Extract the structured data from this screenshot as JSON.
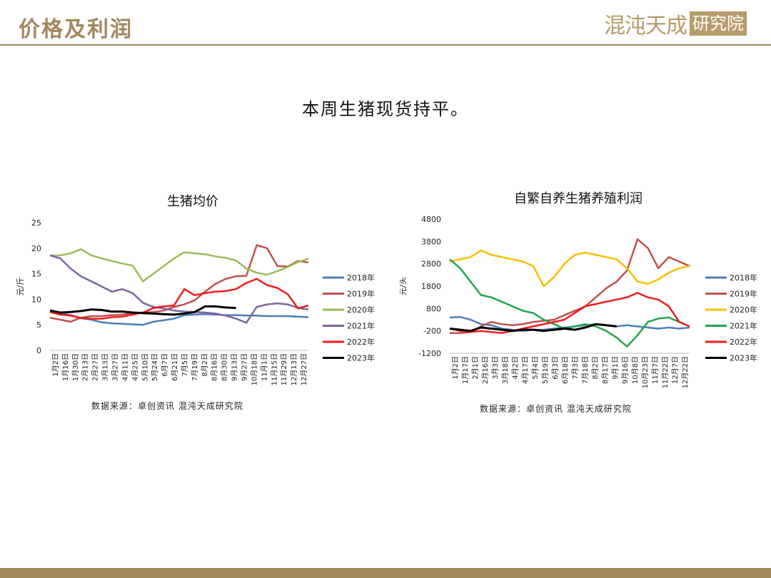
{
  "header": {
    "title": "价格及利润",
    "logo_main": "混沌天成",
    "logo_box": "研究院"
  },
  "subtitle": "本周生猪现货持平。",
  "colors": {
    "brand": "#a2875d",
    "2018": "#4a7ebb",
    "2019": "#c0504d",
    "2020_left": "#9bbb59",
    "2020_right": "#f7c000",
    "2021_left": "#8064a2",
    "2021_right": "#20a64b",
    "2022": "#ee1c1c",
    "2023": "#000000"
  },
  "chart_data": [
    {
      "type": "line",
      "title": "生猪均价",
      "ylabel": "元/斤",
      "ylim": [
        0,
        25
      ],
      "yticks": [
        0,
        5,
        10,
        15,
        20,
        25
      ],
      "x_tick_labels": [
        "1月2日",
        "1月16日",
        "1月30日",
        "2月13日",
        "2月27日",
        "3月13日",
        "3月27日",
        "4月11日",
        "4月25日",
        "5月10日",
        "5月24日",
        "6月7日",
        "6月21日",
        "7月5日",
        "7月19日",
        "8月2日",
        "8月16日",
        "8月30日",
        "9月13日",
        "9月27日",
        "10月18日",
        "11月1日",
        "11月15日",
        "11月29日",
        "12月13日",
        "12月27日"
      ],
      "source": "数据来源：卓创资讯 混沌天成研究院",
      "series": [
        {
          "name": "2018年",
          "color": "#4a7ebb",
          "values": [
            7.6,
            7.3,
            6.9,
            6.3,
            6.0,
            5.5,
            5.3,
            5.2,
            5.1,
            5.0,
            5.6,
            5.9,
            6.2,
            6.9,
            7.0,
            7.1,
            7.0,
            6.9,
            6.9,
            6.8,
            6.8,
            6.7,
            6.7,
            6.7,
            6.6,
            6.5
          ]
        },
        {
          "name": "2019年",
          "color": "#c0504d",
          "values": [
            6.4,
            6.0,
            5.6,
            6.4,
            6.7,
            6.7,
            6.9,
            7.0,
            7.3,
            7.4,
            7.5,
            7.8,
            8.5,
            9.0,
            9.8,
            11.5,
            13.0,
            14.0,
            14.5,
            14.6,
            20.6,
            20.0,
            16.5,
            16.4,
            17.5,
            17.2
          ]
        },
        {
          "name": "2020年",
          "color": "#9bbb59",
          "values": [
            18.5,
            18.6,
            19.0,
            19.8,
            18.6,
            18.0,
            17.5,
            17.0,
            16.6,
            13.5,
            15.0,
            16.5,
            18.0,
            19.2,
            19.0,
            18.8,
            18.4,
            18.1,
            17.6,
            16.0,
            15.2,
            14.8,
            15.5,
            16.3,
            17.3,
            17.9
          ]
        },
        {
          "name": "2021年",
          "color": "#8064a2",
          "values": [
            18.6,
            18.0,
            16.0,
            14.5,
            13.5,
            12.5,
            11.5,
            12.0,
            11.2,
            9.3,
            8.5,
            8.2,
            7.8,
            7.6,
            7.5,
            7.4,
            7.2,
            6.8,
            6.2,
            5.4,
            8.5,
            9.0,
            9.2,
            9.0,
            8.3,
            8.0
          ]
        },
        {
          "name": "2022年",
          "color": "#ee1c1c",
          "values": [
            7.5,
            7.0,
            6.8,
            6.3,
            6.2,
            6.2,
            6.5,
            6.6,
            7.0,
            7.4,
            8.3,
            8.6,
            8.8,
            12.0,
            10.8,
            11.2,
            11.5,
            11.6,
            12.0,
            13.2,
            14.0,
            12.8,
            12.2,
            11.0,
            8.2,
            8.8
          ]
        },
        {
          "name": "2023年",
          "color": "#000000",
          "values": [
            7.8,
            7.4,
            7.5,
            7.7,
            8.0,
            7.9,
            7.6,
            7.6,
            7.4,
            7.3,
            7.2,
            7.1,
            7.0,
            7.2,
            7.5,
            8.6,
            8.6,
            8.4,
            8.3,
            null,
            null,
            null,
            null,
            null,
            null,
            null
          ]
        }
      ]
    },
    {
      "type": "line",
      "title": "自繁自养生猪养殖利润",
      "ylabel": "元/头",
      "ylim": [
        -1200,
        4800
      ],
      "yticks": [
        -1200,
        -200,
        800,
        1800,
        2800,
        3800,
        4800
      ],
      "x_tick_labels": [
        "1月2日",
        "1月17日",
        "2月1日",
        "2月16日",
        "3月3日",
        "3月18日",
        "4月2日",
        "4月17日",
        "5月4日",
        "5月19日",
        "6月3日",
        "6月18日",
        "7月3日",
        "7月18日",
        "8月2日",
        "8月17日",
        "9月1日",
        "9月16日",
        "10月8日",
        "10月23日",
        "11月7日",
        "11月22日",
        "12月7日",
        "12月22日"
      ],
      "source": "数据来源：卓创资讯 混沌天成研究院",
      "series": [
        {
          "name": "2018年",
          "color": "#4a7ebb",
          "values": [
            400,
            420,
            300,
            100,
            50,
            -100,
            -150,
            -200,
            -150,
            -150,
            -100,
            -50,
            0,
            50,
            100,
            50,
            0,
            50,
            0,
            -50,
            -100,
            -50,
            -100,
            -50
          ]
        },
        {
          "name": "2019年",
          "color": "#c0504d",
          "values": [
            -300,
            -300,
            -250,
            0,
            200,
            100,
            50,
            100,
            200,
            250,
            300,
            500,
            700,
            900,
            1300,
            1700,
            2000,
            2500,
            3900,
            3500,
            2600,
            3100,
            2900,
            2700
          ]
        },
        {
          "name": "2020年",
          "color": "#f7c000",
          "values": [
            2900,
            3000,
            3100,
            3400,
            3200,
            3100,
            3000,
            2900,
            2700,
            1800,
            2200,
            2800,
            3200,
            3300,
            3200,
            3100,
            3000,
            2600,
            2000,
            1900,
            2100,
            2400,
            2600,
            2700
          ]
        },
        {
          "name": "2021年",
          "color": "#20a64b",
          "values": [
            3000,
            2600,
            2000,
            1400,
            1300,
            1100,
            900,
            700,
            600,
            300,
            100,
            -100,
            0,
            100,
            0,
            -200,
            -500,
            -900,
            -400,
            200,
            350,
            400,
            200,
            0
          ]
        },
        {
          "name": "2022年",
          "color": "#ee1c1c",
          "values": [
            -100,
            -200,
            -250,
            -200,
            -250,
            -300,
            -200,
            -100,
            0,
            100,
            200,
            300,
            600,
            900,
            1000,
            1100,
            1200,
            1300,
            1500,
            1300,
            1200,
            900,
            200,
            0
          ]
        },
        {
          "name": "2023年",
          "color": "#000000",
          "values": [
            -100,
            -150,
            -200,
            -50,
            -100,
            -150,
            -200,
            -150,
            -150,
            -200,
            -150,
            -100,
            -150,
            -50,
            100,
            50,
            0,
            null,
            null,
            null,
            null,
            null,
            null,
            null
          ]
        }
      ]
    }
  ]
}
